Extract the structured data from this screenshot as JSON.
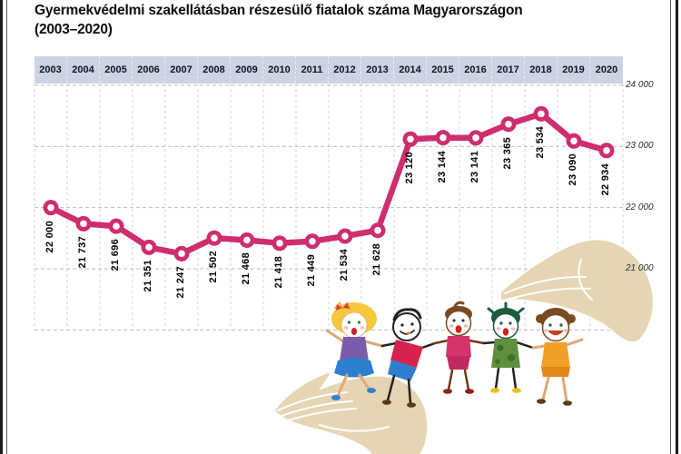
{
  "title": {
    "line1": "Gyermekvédelmi szakellátásban részesülő fiatalok száma Magyarországon",
    "line2": "(2003–2020)"
  },
  "chart_data": {
    "type": "line",
    "categories": [
      "2003",
      "2004",
      "2005",
      "2006",
      "2007",
      "2008",
      "2009",
      "2010",
      "2011",
      "2012",
      "2013",
      "2014",
      "2015",
      "2016",
      "2017",
      "2018",
      "2019",
      "2020"
    ],
    "values": [
      22000,
      21737,
      21696,
      21351,
      21247,
      21502,
      21468,
      21418,
      21449,
      21534,
      21628,
      23120,
      23144,
      23141,
      23365,
      23534,
      23090,
      22934
    ],
    "value_labels": [
      "22 000",
      "21 737",
      "21 696",
      "21 351",
      "21 247",
      "21 502",
      "21 468",
      "21 418",
      "21 449",
      "21 534",
      "21 628",
      "23 120",
      "23 144",
      "23 141",
      "23 365",
      "23 534",
      "23 090",
      "22 934"
    ],
    "title": "Gyermekvédelmi szakellátásban részesülő fiatalok száma Magyarországon (2003–2020)",
    "xlabel": "",
    "ylabel": "",
    "ylim": [
      20000,
      24000
    ],
    "y_axis": {
      "position": "right",
      "ticks": [
        "24 000",
        "23 000",
        "22 000",
        "21 000"
      ],
      "tick_values": [
        24000,
        23000,
        22000,
        21000
      ],
      "grid_step": 1000,
      "gridlines": true
    },
    "legend": "none",
    "colors": {
      "line": "#ce2d6e",
      "marker_ring": "#ce2d6e",
      "marker_center": "#ffffff",
      "year_band_bg": "#ccd3e3",
      "grid": "#bdbdbd",
      "background": "#ffffff"
    }
  },
  "illustration": {
    "description": "Five cartoon children holding hands, sheltered between two large open beige hands (one cupped below-left, one protecting from upper-right)",
    "hand_color": "#e6d5b2",
    "children": [
      {
        "name": "blonde girl",
        "hair": "#f6c83c",
        "top": "#7b5ca8",
        "skirt": "#2f7fd0"
      },
      {
        "name": "boy",
        "hair": "#222222",
        "shirt": "#d6224c",
        "shorts": "#2f7fd0"
      },
      {
        "name": "child in pink",
        "hair": "#7a4a20",
        "outfit": "#d6336c"
      },
      {
        "name": "green-haired child",
        "hair": "#1e5c40",
        "dress": "#5f8f3e"
      },
      {
        "name": "girl in orange",
        "hair": "#7a4a20",
        "dress": "#f0a125"
      }
    ]
  }
}
